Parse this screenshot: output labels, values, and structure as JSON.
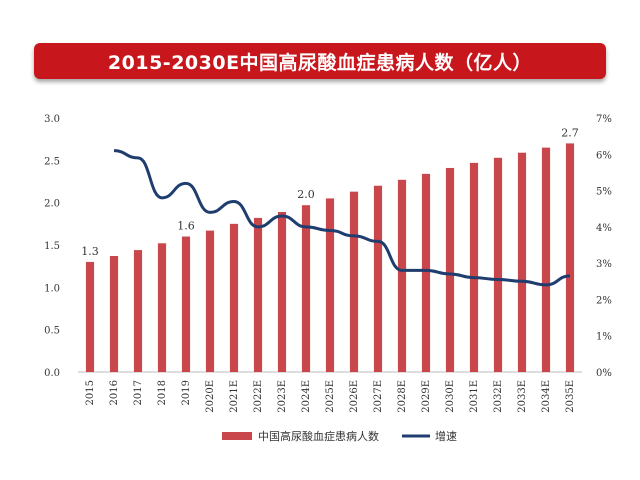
{
  "chart_data": {
    "type": "bar",
    "title": "2015-2030E中国高尿酸血症患病人数（亿人）",
    "categories": [
      "2015",
      "2016",
      "2017",
      "2018",
      "2019",
      "2020E",
      "2021E",
      "2022E",
      "2023E",
      "2024E",
      "2025E",
      "2026E",
      "2027E",
      "2028E",
      "2029E",
      "2030E",
      "2031E",
      "2032E",
      "2033E",
      "2034E",
      "2035E"
    ],
    "series": [
      {
        "name": "中国高尿酸血症患病人数",
        "axis": "left",
        "type": "bar",
        "color": "#c9474b",
        "values": [
          1.3,
          1.37,
          1.44,
          1.52,
          1.6,
          1.67,
          1.75,
          1.82,
          1.89,
          1.97,
          2.05,
          2.13,
          2.2,
          2.27,
          2.34,
          2.41,
          2.47,
          2.53,
          2.59,
          2.65,
          2.7
        ]
      },
      {
        "name": "增速",
        "axis": "right",
        "type": "line",
        "color": "#1f3d6e",
        "values": [
          null,
          6.1,
          5.9,
          4.8,
          5.2,
          4.4,
          4.7,
          4.0,
          4.3,
          4.0,
          3.9,
          3.75,
          3.6,
          2.8,
          2.8,
          2.7,
          2.6,
          2.55,
          2.5,
          2.4,
          2.65
        ]
      }
    ],
    "data_labels": [
      {
        "index": 0,
        "text": "1.3"
      },
      {
        "index": 4,
        "text": "1.6"
      },
      {
        "index": 9,
        "text": "2.0"
      },
      {
        "index": 20,
        "text": "2.7"
      }
    ],
    "y_left": {
      "ylim": [
        0,
        3.0
      ],
      "ticks": [
        "0.0",
        "0.5",
        "1.0",
        "1.5",
        "2.0",
        "2.5",
        "3.0"
      ]
    },
    "y_right": {
      "ylim": [
        0,
        7
      ],
      "ticks": [
        "0%",
        "1%",
        "2%",
        "3%",
        "4%",
        "5%",
        "6%",
        "7%"
      ]
    },
    "legend_position": "bottom",
    "grid": false
  }
}
